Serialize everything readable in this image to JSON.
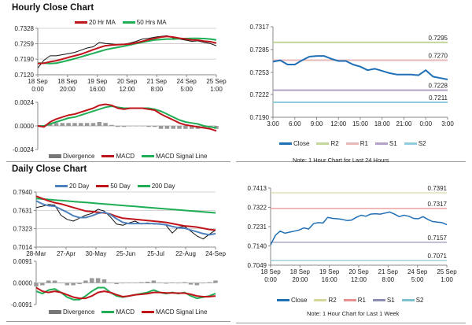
{
  "hourly_section": {
    "title": "Hourly Close Chart"
  },
  "daily_section": {
    "title": "Daily Close Chart"
  },
  "chart_data": [
    {
      "id": "hourly_price",
      "type": "line",
      "ylim": [
        0.712,
        0.7328
      ],
      "yticks": [
        "0.7328",
        "0.7259",
        "0.7190",
        "0.7120"
      ],
      "ytick_values": [
        0.7328,
        0.7259,
        0.719,
        0.712
      ],
      "xticks": [
        [
          "18 Sep",
          "0:00"
        ],
        [
          "18 Sep",
          "20:00"
        ],
        [
          "19 Sep",
          "16:00"
        ],
        [
          "20 Sep",
          "12:00"
        ],
        [
          "21 Sep",
          "8:00"
        ],
        [
          "24 Sep",
          "5:00"
        ],
        [
          "25 Sep",
          "1:00"
        ]
      ],
      "grid": true,
      "legend": [
        {
          "name": "20 Hr MA",
          "color": "#c0141b"
        },
        {
          "name": "50 Hrs MA",
          "color": "#1fae55"
        }
      ],
      "series": [
        {
          "name": "Close",
          "color": "#111111",
          "width": 1,
          "values": [
            0.715,
            0.7185,
            0.7205,
            0.7205,
            0.721,
            0.7215,
            0.722,
            0.723,
            0.724,
            0.7245,
            0.7265,
            0.726,
            0.7258,
            0.7255,
            0.7257,
            0.7262,
            0.727,
            0.728,
            0.7283,
            0.7288,
            0.7292,
            0.7295,
            0.7285,
            0.728,
            0.7275,
            0.727,
            0.7272,
            0.7265,
            0.726,
            0.725
          ]
        },
        {
          "name": "50 Hrs MA",
          "color": "#1fae55",
          "width": 2,
          "values": [
            0.7172,
            0.7172,
            0.717,
            0.7172,
            0.7178,
            0.7185,
            0.7192,
            0.72,
            0.7208,
            0.7216,
            0.7224,
            0.7232,
            0.7238,
            0.7243,
            0.7248,
            0.7254,
            0.726,
            0.7266,
            0.7271,
            0.7276,
            0.7278,
            0.728,
            0.728,
            0.7281,
            0.7282,
            0.7283,
            0.7283,
            0.7282,
            0.728,
            0.7276
          ]
        },
        {
          "name": "20 Hr MA",
          "color": "#c0141b",
          "width": 2,
          "values": [
            0.717,
            0.7172,
            0.7178,
            0.7183,
            0.719,
            0.7198,
            0.7205,
            0.7212,
            0.7222,
            0.7232,
            0.7242,
            0.725,
            0.7253,
            0.7255,
            0.7256,
            0.7258,
            0.7263,
            0.727,
            0.7277,
            0.7283,
            0.7289,
            0.7292,
            0.7289,
            0.7284,
            0.728,
            0.7276,
            0.7275,
            0.7271,
            0.7268,
            0.7262
          ]
        }
      ]
    },
    {
      "id": "hourly_macd",
      "type": "line",
      "ylim": [
        -0.0024,
        0.0024
      ],
      "yticks": [
        "0.0024",
        "0.0000",
        "-0.0024"
      ],
      "ytick_values": [
        0.0024,
        0.0,
        -0.0024
      ],
      "grid": false,
      "legend": [
        {
          "name": "Divergence",
          "color": "#777777",
          "bar": true
        },
        {
          "name": "MACD",
          "color": "#c0141b"
        },
        {
          "name": "MACD Signal Line",
          "color": "#1fae55"
        }
      ],
      "divergence": [
        0,
        -0.0001,
        0.0002,
        0.0003,
        0.0003,
        0.0003,
        0.0003,
        0.0003,
        0.0003,
        0.0003,
        0.0004,
        0.0003,
        0.0001,
        -0.0001,
        -0.0001,
        0,
        0,
        0,
        -0.0001,
        -0.0001,
        -0.0003,
        -0.0003,
        -0.0003,
        -0.0003,
        -0.0003,
        -0.0003,
        -0.0003,
        -0.0002,
        -0.0002,
        -0.0003
      ],
      "series": [
        {
          "name": "MACD Signal Line",
          "color": "#1fae55",
          "width": 2,
          "values": [
            0.0,
            0.0,
            0.0002,
            0.0004,
            0.0006,
            0.0008,
            0.0009,
            0.0011,
            0.0013,
            0.0015,
            0.0017,
            0.0019,
            0.002,
            0.0019,
            0.0018,
            0.0018,
            0.0018,
            0.0018,
            0.0018,
            0.0017,
            0.0015,
            0.0012,
            0.0009,
            0.0006,
            0.0004,
            0.0003,
            0.0002,
            0.0,
            -0.0001,
            -0.0002
          ]
        },
        {
          "name": "MACD",
          "color": "#c0141b",
          "width": 2,
          "values": [
            0.0,
            -0.0001,
            0.0004,
            0.0007,
            0.0009,
            0.0011,
            0.0012,
            0.0014,
            0.0016,
            0.0018,
            0.0021,
            0.0022,
            0.0021,
            0.0018,
            0.0017,
            0.0018,
            0.0018,
            0.0018,
            0.0017,
            0.0016,
            0.0012,
            0.0009,
            0.0006,
            0.0003,
            0.0001,
            0.0,
            -0.0001,
            -0.0002,
            -0.0003,
            -0.0005
          ]
        }
      ]
    },
    {
      "id": "last_24h",
      "type": "line",
      "ylim": [
        0.719,
        0.7317
      ],
      "yticks": [
        "0.7317",
        "0.7285",
        "0.7253",
        "0.7222",
        "0.7190"
      ],
      "ytick_values": [
        0.7317,
        0.7285,
        0.7253,
        0.7222,
        0.719
      ],
      "xticks": [
        [
          "3:00"
        ],
        [
          "6:00"
        ],
        [
          "9:00"
        ],
        [
          "12:00"
        ],
        [
          "15:00"
        ],
        [
          "18:00"
        ],
        [
          "21:00"
        ],
        [
          "0:00"
        ],
        [
          "3:00"
        ]
      ],
      "grid": false,
      "levels": [
        {
          "name": "R2",
          "value": 0.7295,
          "label": "0.7295",
          "color": "#c3d69b"
        },
        {
          "name": "R1",
          "value": 0.727,
          "label": "0.7270",
          "color": "#e6b9b8"
        },
        {
          "name": "S1",
          "value": 0.7228,
          "label": "0.7228",
          "color": "#b3a2c7"
        },
        {
          "name": "S2",
          "value": 0.7211,
          "label": "0.7211",
          "color": "#93cddd"
        }
      ],
      "legend": [
        {
          "name": "Close",
          "color": "#1f6fb5"
        },
        {
          "name": "R2",
          "color": "#c3d69b"
        },
        {
          "name": "R1",
          "color": "#e6b9b8"
        },
        {
          "name": "S1",
          "color": "#b3a2c7"
        },
        {
          "name": "S2",
          "color": "#93cddd"
        }
      ],
      "note": "Note: 1 Hour Chart for Last 24 Hours",
      "series": [
        {
          "name": "Close",
          "color": "#1f6fb5",
          "width": 2,
          "values": [
            0.7268,
            0.727,
            0.7264,
            0.7264,
            0.727,
            0.7275,
            0.7276,
            0.7276,
            0.7272,
            0.7269,
            0.7269,
            0.7264,
            0.7261,
            0.7256,
            0.7258,
            0.7255,
            0.7252,
            0.725,
            0.725,
            0.725,
            0.7249,
            0.7256,
            0.7247,
            0.7245,
            0.7243
          ]
        }
      ]
    },
    {
      "id": "daily_price",
      "type": "line",
      "ylim": [
        0.7014,
        0.794
      ],
      "yticks": [
        "0.7940",
        "0.7631",
        "0.7323",
        "0.7014"
      ],
      "ytick_values": [
        0.794,
        0.7631,
        0.7323,
        0.7014
      ],
      "xticks": [
        [
          "28-Mar"
        ],
        [
          "27-Apr"
        ],
        [
          "30-May"
        ],
        [
          "25-Jun"
        ],
        [
          "25-Jul"
        ],
        [
          "22-Aug"
        ],
        [
          "24-Sep"
        ]
      ],
      "grid": true,
      "legend": [
        {
          "name": "20 Day",
          "color": "#4f81bd"
        },
        {
          "name": "50 Day",
          "color": "#c0141b"
        },
        {
          "name": "200 Day",
          "color": "#1fae55"
        }
      ],
      "series": [
        {
          "name": "Close",
          "color": "#111111",
          "width": 1,
          "values": [
            0.768,
            0.77,
            0.773,
            0.772,
            0.755,
            0.748,
            0.745,
            0.75,
            0.755,
            0.758,
            0.765,
            0.762,
            0.752,
            0.74,
            0.738,
            0.742,
            0.745,
            0.74,
            0.742,
            0.74,
            0.741,
            0.738,
            0.725,
            0.735,
            0.736,
            0.728,
            0.72,
            0.715,
            0.723,
            0.73
          ]
        },
        {
          "name": "200 Day",
          "color": "#1fae55",
          "width": 2,
          "values": [
            0.783,
            0.7822,
            0.7814,
            0.7805,
            0.7797,
            0.7789,
            0.778,
            0.7772,
            0.7764,
            0.7756,
            0.7747,
            0.7739,
            0.7731,
            0.7722,
            0.7714,
            0.7706,
            0.7698,
            0.7689,
            0.7681,
            0.7673,
            0.7664,
            0.7656,
            0.7648,
            0.764,
            0.7631,
            0.7623,
            0.7615,
            0.7606,
            0.7598,
            0.759
          ]
        },
        {
          "name": "50 Day",
          "color": "#c0141b",
          "width": 2,
          "values": [
            0.787,
            0.783,
            0.779,
            0.776,
            0.774,
            0.771,
            0.768,
            0.765,
            0.762,
            0.761,
            0.76,
            0.759,
            0.757,
            0.753,
            0.75,
            0.749,
            0.748,
            0.747,
            0.746,
            0.745,
            0.744,
            0.743,
            0.741,
            0.739,
            0.737,
            0.736,
            0.735,
            0.733,
            0.731,
            0.73
          ]
        },
        {
          "name": "20 Day",
          "color": "#4f81bd",
          "width": 2,
          "values": [
            0.779,
            0.774,
            0.771,
            0.77,
            0.765,
            0.76,
            0.754,
            0.751,
            0.751,
            0.754,
            0.758,
            0.76,
            0.756,
            0.749,
            0.743,
            0.741,
            0.741,
            0.741,
            0.741,
            0.741,
            0.74,
            0.739,
            0.736,
            0.734,
            0.733,
            0.73,
            0.727,
            0.724,
            0.722,
            0.724
          ]
        }
      ]
    },
    {
      "id": "daily_macd",
      "type": "line",
      "ylim": [
        -0.0091,
        0.0091
      ],
      "yticks": [
        "0.0091",
        "0.0000",
        "-0.0091"
      ],
      "ytick_values": [
        0.0091,
        0.0,
        -0.0091
      ],
      "grid": false,
      "legend": [
        {
          "name": "Divergence",
          "color": "#777777",
          "bar": true
        },
        {
          "name": "MACD",
          "color": "#1fae55"
        },
        {
          "name": "MACD Signal Line",
          "color": "#c0141b"
        }
      ],
      "divergence": [
        -0.0015,
        -0.001,
        0.001,
        0.001,
        0,
        -0.001,
        -0.001,
        -0.0005,
        0.001,
        0.002,
        0.002,
        0.0015,
        0,
        -0.0005,
        -0.0002,
        0,
        0,
        0.0003,
        0.0005,
        0.001,
        0,
        -0.0003,
        0.0002,
        -0.0002,
        0.0003,
        -0.0007,
        -0.001,
        -0.0002,
        0.0003,
        0.001
      ],
      "series": [
        {
          "name": "MACD",
          "color": "#1fae55",
          "width": 2,
          "values": [
            -0.0035,
            -0.0045,
            -0.003,
            -0.0025,
            -0.004,
            -0.006,
            -0.007,
            -0.007,
            -0.0055,
            -0.0035,
            -0.002,
            -0.002,
            -0.004,
            -0.0055,
            -0.006,
            -0.0055,
            -0.005,
            -0.0045,
            -0.004,
            -0.003,
            -0.004,
            -0.0045,
            -0.004,
            -0.0045,
            -0.004,
            -0.0055,
            -0.0065,
            -0.006,
            -0.0055,
            -0.0045
          ]
        },
        {
          "name": "MACD Signal Line",
          "color": "#c0141b",
          "width": 2,
          "values": [
            -0.002,
            -0.0035,
            -0.004,
            -0.0035,
            -0.004,
            -0.005,
            -0.006,
            -0.0065,
            -0.0065,
            -0.0055,
            -0.004,
            -0.0035,
            -0.004,
            -0.005,
            -0.0058,
            -0.0055,
            -0.005,
            -0.0048,
            -0.0045,
            -0.004,
            -0.004,
            -0.0042,
            -0.0042,
            -0.0043,
            -0.0043,
            -0.0048,
            -0.0055,
            -0.0058,
            -0.0058,
            -0.0055
          ]
        }
      ]
    },
    {
      "id": "last_week",
      "type": "line",
      "ylim": [
        0.7049,
        0.7413
      ],
      "yticks": [
        "0.7413",
        "0.7322",
        "0.7231",
        "0.7140",
        "0.7049"
      ],
      "ytick_values": [
        0.7413,
        0.7322,
        0.7231,
        0.714,
        0.7049
      ],
      "xticks": [
        [
          "18 Sep",
          "0:00"
        ],
        [
          "18 Sep",
          "20:00"
        ],
        [
          "19 Sep",
          "16:00"
        ],
        [
          "20 Sep",
          "12:00"
        ],
        [
          "21 Sep",
          "8:00"
        ],
        [
          "24 Sep",
          "5:00"
        ],
        [
          "25 Sep",
          "1:00"
        ]
      ],
      "grid": false,
      "levels": [
        {
          "name": "R2",
          "value": 0.7391,
          "label": "0.7391",
          "color": "#d6d69a"
        },
        {
          "name": "R1",
          "value": 0.7317,
          "label": "0.7317",
          "color": "#e99090"
        },
        {
          "name": "S1",
          "value": 0.7157,
          "label": "0.7157",
          "color": "#8c8cb4"
        },
        {
          "name": "S2",
          "value": 0.7071,
          "label": "0.7071",
          "color": "#7fc0cf"
        }
      ],
      "legend": [
        {
          "name": "Close",
          "color": "#1f6fb5"
        },
        {
          "name": "R2",
          "color": "#d6d69a"
        },
        {
          "name": "R1",
          "color": "#e99090"
        },
        {
          "name": "S1",
          "color": "#8c8cb4"
        },
        {
          "name": "S2",
          "color": "#7fc0cf"
        }
      ],
      "note": "Note: 1 Hour Chart for Last 1 Week",
      "series": [
        {
          "name": "Close",
          "color": "#1f6fb5",
          "width": 1.5,
          "values": [
            0.7145,
            0.719,
            0.721,
            0.72,
            0.7205,
            0.721,
            0.7215,
            0.7225,
            0.722,
            0.7245,
            0.725,
            0.7248,
            0.7275,
            0.727,
            0.7268,
            0.7265,
            0.726,
            0.7262,
            0.7275,
            0.7285,
            0.728,
            0.729,
            0.7292,
            0.729,
            0.7295,
            0.73,
            0.729,
            0.7278,
            0.7285,
            0.728,
            0.727,
            0.7268,
            0.7278,
            0.7265,
            0.7255,
            0.7252,
            0.725,
            0.724
          ]
        }
      ]
    }
  ]
}
